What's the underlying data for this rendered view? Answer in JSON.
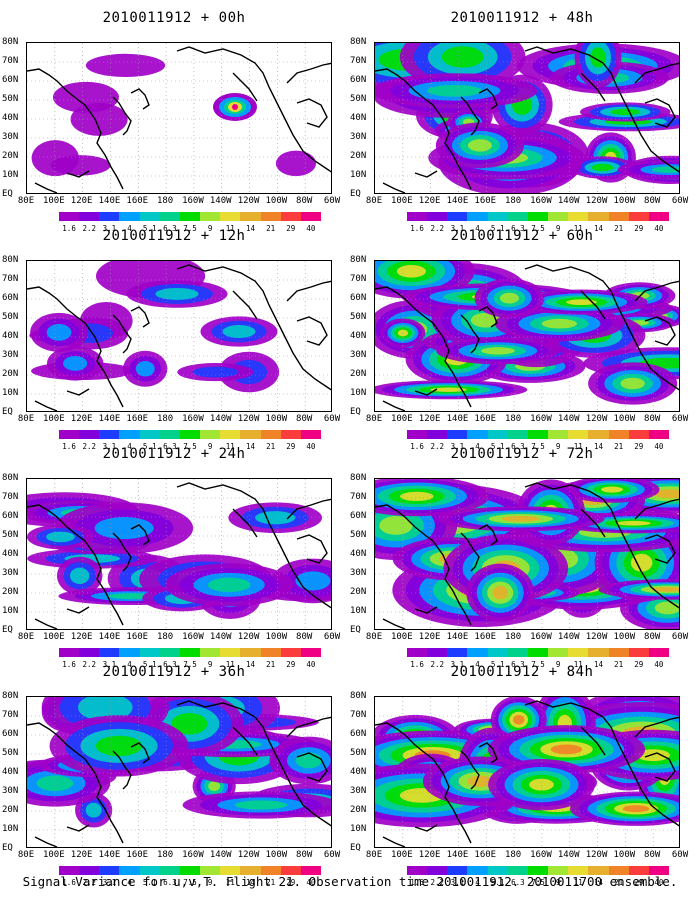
{
  "panels": [
    {
      "title": "2010011912 + 00h",
      "col": 0,
      "row": 0,
      "intensity": 0.0
    },
    {
      "title": "2010011912 + 12h",
      "col": 0,
      "row": 1,
      "intensity": 0.25
    },
    {
      "title": "2010011912 + 24h",
      "col": 0,
      "row": 2,
      "intensity": 0.45
    },
    {
      "title": "2010011912 + 36h",
      "col": 0,
      "row": 3,
      "intensity": 0.6
    },
    {
      "title": "2010011912 + 48h",
      "col": 1,
      "row": 0,
      "intensity": 0.7
    },
    {
      "title": "2010011912 + 60h",
      "col": 1,
      "row": 1,
      "intensity": 0.8
    },
    {
      "title": "2010011912 + 72h",
      "col": 1,
      "row": 2,
      "intensity": 0.9
    },
    {
      "title": "2010011912 + 84h",
      "col": 1,
      "row": 3,
      "intensity": 1.0
    }
  ],
  "lat_labels": [
    "80N",
    "70N",
    "60N",
    "50N",
    "40N",
    "30N",
    "20N",
    "10N",
    "EQ"
  ],
  "lon_labels": [
    "80E",
    "100E",
    "120E",
    "140E",
    "160E",
    "180",
    "160W",
    "140W",
    "120W",
    "100W",
    "80W",
    "60W"
  ],
  "colorbar": {
    "labels": [
      "1.6",
      "2.2",
      "3.1",
      "4",
      "5.1",
      "6.3",
      "7.5",
      "9",
      "11",
      "14",
      "21",
      "29",
      "40"
    ],
    "colors": [
      "#a000c8",
      "#8200dc",
      "#1e3cff",
      "#00a0ff",
      "#00c8c8",
      "#00d28c",
      "#00dc00",
      "#a0e632",
      "#e6dc32",
      "#e6af2d",
      "#f08228",
      "#fa3c3c",
      "#f00082"
    ]
  },
  "caption": "Signal Variance for u,v,T. Flight 21. Observation time 2010011912. 2010011700 ensemble."
}
